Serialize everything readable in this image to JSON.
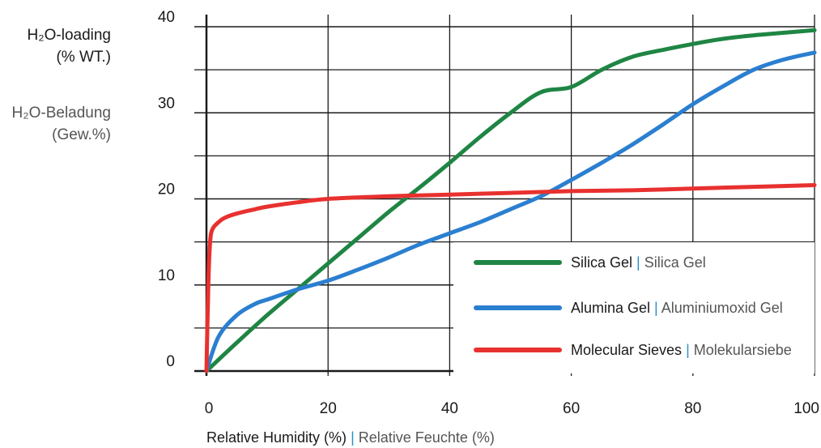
{
  "chart_data": {
    "type": "line",
    "ylabel_en_line1": "H₂O-loading",
    "ylabel_en_line2": "(% WT.)",
    "ylabel_de_line1": "H₂O-Beladung",
    "ylabel_de_line2": "(Gew.%)",
    "xlabel_en": "Relative Humidity (%)",
    "xlabel_sep": "|",
    "xlabel_de": "Relative Feuchte (%)",
    "xlim": [
      0,
      100
    ],
    "ylim": [
      0,
      40
    ],
    "x_ticks": [
      0,
      20,
      40,
      60,
      80,
      100
    ],
    "y_ticks": [
      0,
      10,
      20,
      30,
      40
    ],
    "grid": true,
    "legend_position": "bottom-right",
    "series": [
      {
        "name": "Silica Gel",
        "name_de": "Silica Gel",
        "color": "#1f8544",
        "x": [
          0,
          5,
          10,
          15,
          20,
          25,
          30,
          35,
          40,
          45,
          50,
          55,
          60,
          65,
          70,
          75,
          80,
          85,
          90,
          95,
          100
        ],
        "y": [
          0,
          3.3,
          6.5,
          9.5,
          12.5,
          15.5,
          18.5,
          21.3,
          24.2,
          27.2,
          30,
          32.4,
          33,
          35,
          36.5,
          37.3,
          38,
          38.6,
          39,
          39.3,
          39.6
        ]
      },
      {
        "name": "Alumina Gel",
        "name_de": "Aluminiumoxid Gel",
        "color": "#2b7fd0",
        "x": [
          0,
          2,
          5,
          8,
          10,
          15,
          20,
          25,
          30,
          35,
          40,
          45,
          50,
          55,
          60,
          65,
          70,
          75,
          80,
          85,
          90,
          95,
          100
        ],
        "y": [
          0,
          4,
          6.5,
          7.8,
          8.3,
          9.5,
          10.5,
          11.8,
          13.2,
          14.7,
          16,
          17.3,
          18.8,
          20.3,
          22.2,
          24.2,
          26.3,
          28.6,
          31,
          33.1,
          35,
          36.2,
          37
        ]
      },
      {
        "name": "Molecular Sieves",
        "name_de": "Molekularsiebe",
        "color": "#e8312f",
        "x": [
          0,
          0.3,
          0.6,
          1,
          2,
          3,
          5,
          8,
          10,
          15,
          20,
          30,
          40,
          50,
          60,
          70,
          80,
          90,
          100
        ],
        "y": [
          0,
          10,
          15,
          16.5,
          17.3,
          17.8,
          18.3,
          18.8,
          19.1,
          19.6,
          20,
          20.3,
          20.5,
          20.7,
          20.9,
          21,
          21.2,
          21.4,
          21.6
        ]
      }
    ]
  }
}
